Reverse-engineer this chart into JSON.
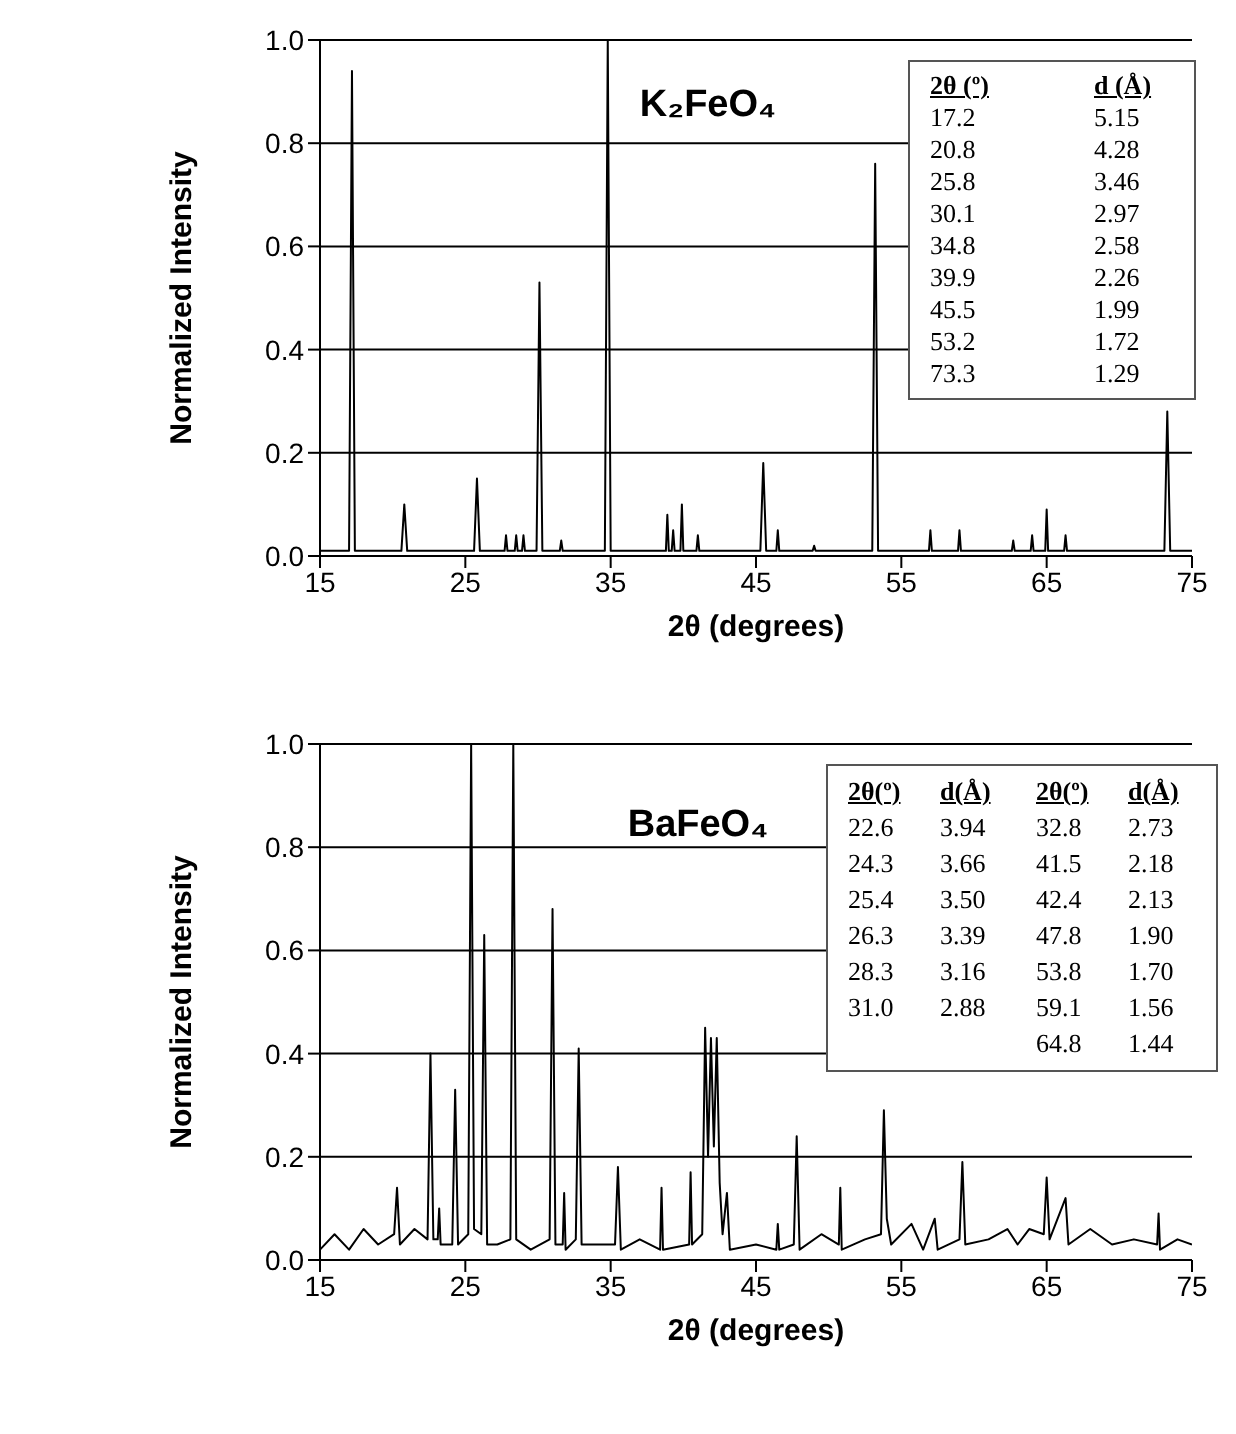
{
  "chart_data": [
    {
      "type": "line",
      "title": "K₂FeO₄",
      "xlabel": "2θ (degrees)",
      "ylabel": "Normalized Intensity",
      "color": "#000000",
      "grid": "y",
      "marker": "none",
      "line_style": "solid",
      "xlim": [
        15,
        75
      ],
      "xticks": [
        15,
        25,
        35,
        45,
        55,
        65,
        75
      ],
      "ylim": [
        0,
        1
      ],
      "yticks": [
        {
          "value": 0,
          "label": "0.0"
        },
        {
          "value": 0.2,
          "label": "0.2"
        },
        {
          "value": 0.4,
          "label": "0.4"
        },
        {
          "value": 0.6,
          "label": "0.6"
        },
        {
          "value": 0.8,
          "label": "0.8"
        },
        {
          "value": 1,
          "label": "1.0"
        }
      ],
      "annotations": [
        "2θ (º)",
        "17.2",
        "20.8",
        "25.8",
        "30.1",
        "34.8",
        "39.9",
        "45.5",
        "53.2",
        "73.3",
        "d (Å)",
        "5.15",
        "4.28",
        "3.46",
        "2.97",
        "2.58",
        "2.26",
        "1.99",
        "1.72",
        "1.29"
      ],
      "x": [
        15,
        17.0,
        17.2,
        17.4,
        20.6,
        20.8,
        21.0,
        25.6,
        25.8,
        26.0,
        27.7,
        27.8,
        27.9,
        28.4,
        28.5,
        28.6,
        28.9,
        29.0,
        29.1,
        29.9,
        30.1,
        30.3,
        31.5,
        31.6,
        31.7,
        34.6,
        34.8,
        35.0,
        38.8,
        38.9,
        39.0,
        39.2,
        39.3,
        39.4,
        39.8,
        39.9,
        40.0,
        40.9,
        41.0,
        41.1,
        45.3,
        45.5,
        45.7,
        46.4,
        46.5,
        46.6,
        48.9,
        49.0,
        49.1,
        53.0,
        53.2,
        53.4,
        56.9,
        57.0,
        57.1,
        58.9,
        59.0,
        59.1,
        62.6,
        62.7,
        62.8,
        63.9,
        64.0,
        64.1,
        64.9,
        65.0,
        65.1,
        66.2,
        66.3,
        66.4,
        73.1,
        73.3,
        73.5,
        75
      ],
      "values": [
        0.01,
        0.01,
        0.94,
        0.01,
        0.01,
        0.1,
        0.01,
        0.01,
        0.15,
        0.01,
        0.01,
        0.04,
        0.01,
        0.01,
        0.04,
        0.01,
        0.01,
        0.04,
        0.01,
        0.01,
        0.53,
        0.01,
        0.01,
        0.03,
        0.01,
        0.01,
        1.0,
        0.01,
        0.01,
        0.08,
        0.01,
        0.01,
        0.05,
        0.01,
        0.01,
        0.1,
        0.01,
        0.01,
        0.04,
        0.01,
        0.01,
        0.18,
        0.01,
        0.01,
        0.05,
        0.01,
        0.01,
        0.02,
        0.01,
        0.01,
        0.76,
        0.01,
        0.01,
        0.05,
        0.01,
        0.01,
        0.05,
        0.01,
        0.01,
        0.03,
        0.01,
        0.01,
        0.04,
        0.01,
        0.01,
        0.09,
        0.01,
        0.01,
        0.04,
        0.01,
        0.01,
        0.28,
        0.01,
        0.01
      ]
    },
    {
      "type": "line",
      "title": "BaFeO₄",
      "xlabel": "2θ (degrees)",
      "ylabel": "Normalized Intensity",
      "color": "#000000",
      "grid": "y",
      "marker": "none",
      "line_style": "solid",
      "xlim": [
        15,
        75
      ],
      "xticks": [
        15,
        25,
        35,
        45,
        55,
        65,
        75
      ],
      "ylim": [
        0,
        1
      ],
      "yticks": [
        {
          "value": 0,
          "label": "0.0"
        },
        {
          "value": 0.2,
          "label": "0.2"
        },
        {
          "value": 0.4,
          "label": "0.4"
        },
        {
          "value": 0.6,
          "label": "0.6"
        },
        {
          "value": 0.8,
          "label": "0.8"
        },
        {
          "value": 1,
          "label": "1.0"
        }
      ],
      "annotations": [
        "2θ(º)",
        "22.6",
        "24.3",
        "25.4",
        "26.3",
        "28.3",
        "31.0",
        "d(Å)",
        "3.94",
        "3.66",
        "3.50",
        "3.39",
        "3.16",
        "2.88",
        "2θ(º)",
        "32.8",
        "41.5",
        "42.4",
        "47.8",
        "53.8",
        "59.1",
        "64.8",
        "d(Å)",
        "2.73",
        "2.18",
        "2.13",
        "1.90",
        "1.70",
        "1.56",
        "1.44"
      ],
      "x": [
        15,
        16,
        17,
        18,
        19,
        20.1,
        20.3,
        20.5,
        21.5,
        22.4,
        22.6,
        22.8,
        23.1,
        23.2,
        23.3,
        24.1,
        24.3,
        24.5,
        25.2,
        25.4,
        25.6,
        26.1,
        26.3,
        26.5,
        27.2,
        28.1,
        28.3,
        28.5,
        29.5,
        30.8,
        31.0,
        31.2,
        31.7,
        31.8,
        31.9,
        32.6,
        32.8,
        33.0,
        34.0,
        35.3,
        35.5,
        35.7,
        37.0,
        38.4,
        38.5,
        38.6,
        40.4,
        40.5,
        40.6,
        41.3,
        41.5,
        41.7,
        41.9,
        42.1,
        42.3,
        42.5,
        42.7,
        43.0,
        43.2,
        45.0,
        46.4,
        46.5,
        46.6,
        47.6,
        47.8,
        48.0,
        49.5,
        50.7,
        50.8,
        50.9,
        52.5,
        53.6,
        53.8,
        54.0,
        54.3,
        55.7,
        56.5,
        57.3,
        57.5,
        59.0,
        59.2,
        59.4,
        61.0,
        62.3,
        63.0,
        63.8,
        64.8,
        65.0,
        65.2,
        66.3,
        66.5,
        68.0,
        69.5,
        71.0,
        72.6,
        72.7,
        72.8,
        74.0,
        75
      ],
      "values": [
        0.02,
        0.05,
        0.02,
        0.06,
        0.03,
        0.05,
        0.14,
        0.03,
        0.06,
        0.04,
        0.4,
        0.04,
        0.04,
        0.1,
        0.03,
        0.03,
        0.33,
        0.03,
        0.05,
        1.0,
        0.06,
        0.05,
        0.63,
        0.03,
        0.03,
        0.04,
        1.0,
        0.04,
        0.02,
        0.04,
        0.68,
        0.03,
        0.03,
        0.13,
        0.02,
        0.04,
        0.41,
        0.03,
        0.03,
        0.03,
        0.18,
        0.02,
        0.04,
        0.02,
        0.14,
        0.02,
        0.03,
        0.17,
        0.03,
        0.05,
        0.45,
        0.2,
        0.43,
        0.22,
        0.43,
        0.15,
        0.05,
        0.13,
        0.02,
        0.03,
        0.02,
        0.07,
        0.02,
        0.03,
        0.24,
        0.02,
        0.05,
        0.03,
        0.14,
        0.02,
        0.04,
        0.05,
        0.29,
        0.08,
        0.03,
        0.07,
        0.02,
        0.08,
        0.02,
        0.04,
        0.19,
        0.03,
        0.04,
        0.06,
        0.03,
        0.06,
        0.05,
        0.16,
        0.04,
        0.12,
        0.03,
        0.06,
        0.03,
        0.04,
        0.03,
        0.09,
        0.02,
        0.04,
        0.03
      ]
    }
  ]
}
